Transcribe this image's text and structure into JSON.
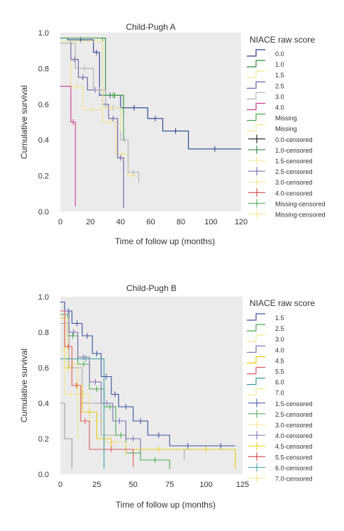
{
  "chart_data": [
    {
      "type": "line",
      "title": "Child-Pugh A",
      "xlabel": "Time of follow up (months)",
      "ylabel": "Cumulative survival",
      "xlim": [
        0,
        120
      ],
      "ylim": [
        0,
        1
      ],
      "xticks": [
        "0",
        "20",
        "40",
        "60",
        "80",
        "100",
        "120"
      ],
      "yticks": [
        "0.0",
        "0.2",
        "0.4",
        "0.6",
        "0.8",
        "1.0"
      ],
      "grid": false,
      "legend_title": "NIACE raw score",
      "legend_position": "right",
      "series": [
        {
          "name": "0.0",
          "color": "#2c3e8c",
          "x": [
            0,
            5,
            22,
            26,
            40,
            58,
            68,
            85,
            120
          ],
          "y": [
            0.97,
            0.96,
            0.89,
            0.65,
            0.58,
            0.52,
            0.45,
            0.35,
            0.35
          ]
        },
        {
          "name": "1.0",
          "color": "#2e8b3a",
          "x": [
            0,
            30,
            42
          ],
          "y": [
            0.97,
            0.65,
            0.55
          ]
        },
        {
          "name": "1.5",
          "color": "#f2e68a",
          "x": [
            0,
            7,
            15,
            28,
            37,
            45,
            50
          ],
          "y": [
            0.95,
            0.7,
            0.57,
            0.5,
            0.32,
            0.2,
            0.2
          ]
        },
        {
          "name": "2.5",
          "color": "#6a5aa8",
          "x": [
            0,
            7,
            12,
            18,
            28,
            32,
            38,
            42
          ],
          "y": [
            0.95,
            0.85,
            0.75,
            0.68,
            0.6,
            0.52,
            0.3,
            0.02
          ]
        },
        {
          "name": "3.0",
          "color": "#b3b3b3",
          "x": [
            0,
            10,
            22,
            30,
            40,
            45,
            52
          ],
          "y": [
            0.94,
            0.8,
            0.68,
            0.58,
            0.4,
            0.22,
            0.16
          ]
        },
        {
          "name": "4.0",
          "color": "#cc3d8f",
          "x": [
            0,
            7,
            10
          ],
          "y": [
            0.7,
            0.5,
            0.03
          ]
        },
        {
          "name": "Missing",
          "color": "#49a64c",
          "x": [
            0,
            28,
            42
          ],
          "y": [
            0.97,
            0.65,
            0.4
          ]
        },
        {
          "name": "Missing",
          "color": "#f2e68a",
          "x": [
            0,
            28,
            40
          ],
          "y": [
            0.95,
            0.58,
            0.45
          ]
        }
      ],
      "censored_legend": [
        "0.0-censored",
        "1.0-censored",
        "1.5-censored",
        "2.5-censored",
        "3.0-censored",
        "4.0-censored",
        "Missing-censored",
        "Missing-censored"
      ],
      "censored_colors": [
        "#000000",
        "#1e7a35",
        "#f2e68a",
        "#6a5aa8",
        "#f2e68a",
        "#cc3333",
        "#49a64c",
        "#f2e68a"
      ]
    },
    {
      "type": "line",
      "title": "Child-Pugh B",
      "xlabel": "Time of follow up (months)",
      "ylabel": "Cumulative survival",
      "xlim": [
        0,
        125
      ],
      "ylim": [
        0,
        1
      ],
      "xticks": [
        "0",
        "25",
        "50",
        "75",
        "100",
        "125"
      ],
      "yticks": [
        "0.0",
        "0.2",
        "0.4",
        "0.6",
        "0.8",
        "1.0"
      ],
      "grid": false,
      "legend_title": "NIACE raw score",
      "legend_position": "right",
      "series": [
        {
          "name": "1.5",
          "color": "#3b4fa0",
          "x": [
            0,
            3,
            8,
            15,
            22,
            28,
            35,
            40,
            50,
            60,
            75,
            100,
            120
          ],
          "y": [
            0.97,
            0.92,
            0.85,
            0.78,
            0.68,
            0.55,
            0.45,
            0.38,
            0.3,
            0.22,
            0.16,
            0.16,
            0.16
          ]
        },
        {
          "name": "2.5",
          "color": "#4aa84e",
          "x": [
            0,
            5,
            12,
            20,
            30,
            38,
            45,
            55,
            75
          ],
          "y": [
            0.9,
            0.78,
            0.62,
            0.48,
            0.38,
            0.22,
            0.12,
            0.08,
            0.03
          ]
        },
        {
          "name": "3.0",
          "color": "#f2e68a",
          "x": [
            0,
            5,
            12,
            20,
            30,
            45
          ],
          "y": [
            0.88,
            0.62,
            0.45,
            0.3,
            0.18,
            0.1
          ]
        },
        {
          "name": "4.0",
          "color": "#7a6cb5",
          "x": [
            0,
            6,
            12,
            20,
            28,
            36,
            45,
            55
          ],
          "y": [
            0.92,
            0.8,
            0.66,
            0.52,
            0.4,
            0.3,
            0.2,
            0.12
          ]
        },
        {
          "name": "4.5",
          "color": "#e8cc10",
          "x": [
            0,
            3,
            8,
            15,
            25,
            35,
            55,
            80,
            120
          ],
          "y": [
            0.88,
            0.6,
            0.5,
            0.35,
            0.2,
            0.14,
            0.14,
            0.14,
            0.03
          ]
        },
        {
          "name": "5.5",
          "color": "#e05a5a",
          "x": [
            0,
            3,
            8,
            14,
            20,
            50
          ],
          "y": [
            0.92,
            0.72,
            0.5,
            0.3,
            0.14,
            0.04
          ]
        },
        {
          "name": "6.0",
          "color": "#3aa0a0",
          "x": [
            0,
            5,
            30
          ],
          "y": [
            0.65,
            0.65,
            0.03
          ]
        },
        {
          "name": "7.0",
          "color": "#f2e68a",
          "x": [
            0,
            3,
            12
          ],
          "y": [
            0.7,
            0.45,
            0.2
          ]
        }
      ],
      "extra_lines": [
        {
          "color": "#9e9e9e",
          "x": [
            0,
            3,
            8
          ],
          "y": [
            0.4,
            0.2,
            0.03
          ]
        },
        {
          "color": "#a8a8a8",
          "x": [
            0,
            6,
            15,
            28,
            45,
            85
          ],
          "y": [
            0.85,
            0.6,
            0.4,
            0.22,
            0.14,
            0.08
          ]
        }
      ],
      "censored_legend": [
        "1.5-censored",
        "2.5-censored",
        "3.0-censored",
        "4.0-censored",
        "4.5-censored",
        "5.5-censored",
        "6.0-censored",
        "7.0-censored"
      ],
      "censored_colors": [
        "#3b4fa0",
        "#4aa84e",
        "#f2e68a",
        "#7a6cb5",
        "#e8cc10",
        "#cc3333",
        "#3aa0a0",
        "#f2e68a"
      ]
    }
  ]
}
